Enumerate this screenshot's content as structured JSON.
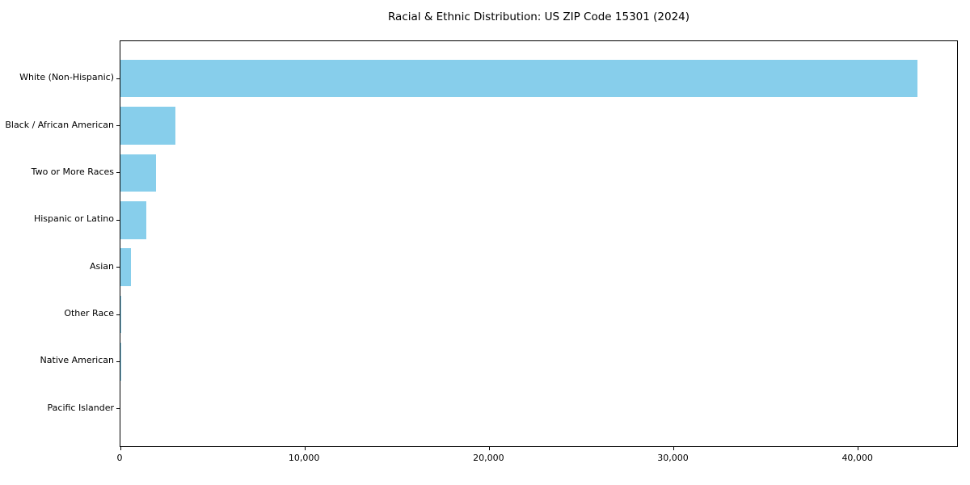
{
  "chart_data": {
    "type": "bar",
    "orientation": "horizontal",
    "title": "Racial & Ethnic Distribution: US ZIP Code 15301 (2024)",
    "categories": [
      "White (Non-Hispanic)",
      "Black / African American",
      "Two or More Races",
      "Hispanic or Latino",
      "Asian",
      "Other Race",
      "Native American",
      "Pacific Islander"
    ],
    "values": [
      43200,
      3000,
      1950,
      1400,
      590,
      10,
      5,
      2
    ],
    "xlabel": "",
    "ylabel": "",
    "xlim": [
      0,
      45360
    ],
    "x_ticks": [
      0,
      10000,
      20000,
      30000,
      40000
    ],
    "x_tick_labels": [
      "0",
      "10,000",
      "20,000",
      "30,000",
      "40,000"
    ],
    "bar_color": "#87CEEB",
    "bar_height_fraction": 0.8,
    "axis_margin_fraction": 0.05,
    "grid": false,
    "legend": null,
    "colors": {
      "spine": "#000000",
      "text": "#000000",
      "background": "#ffffff"
    }
  }
}
